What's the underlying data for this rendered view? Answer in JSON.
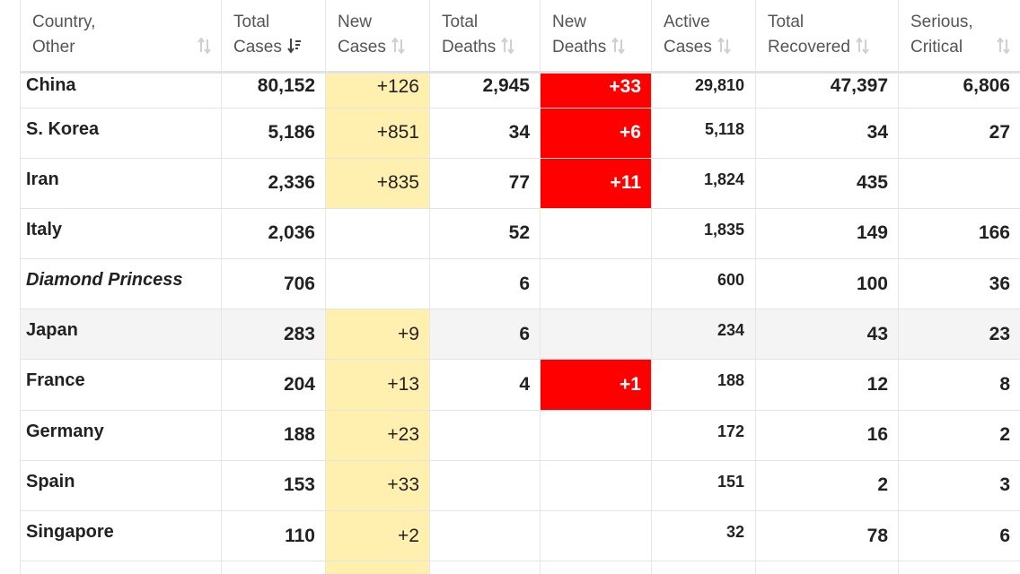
{
  "headers": [
    {
      "line1": "Country,",
      "line2": "Other",
      "sort_icon": "sort-both-icon"
    },
    {
      "line1": "Total",
      "line2": "Cases",
      "sort_icon": "sort-desc-icon"
    },
    {
      "line1": "New",
      "line2": "Cases",
      "sort_icon": "sort-both-icon"
    },
    {
      "line1": "Total",
      "line2": "Deaths",
      "sort_icon": "sort-both-icon"
    },
    {
      "line1": "New",
      "line2": "Deaths",
      "sort_icon": "sort-both-icon"
    },
    {
      "line1": "Active",
      "line2": "Cases",
      "sort_icon": "sort-both-icon"
    },
    {
      "line1": "Total",
      "line2": "Recovered",
      "sort_icon": "sort-both-icon"
    },
    {
      "line1": "Serious,",
      "line2": "Critical",
      "sort_icon": "sort-both-icon"
    }
  ],
  "rows": [
    {
      "country": "China",
      "total_cases": "80,152",
      "new_cases": "+126",
      "total_deaths": "2,945",
      "new_deaths": "+33",
      "active_cases": "29,810",
      "total_recovered": "47,397",
      "serious_critical": "6,806"
    },
    {
      "country": "S. Korea",
      "total_cases": "5,186",
      "new_cases": "+851",
      "total_deaths": "34",
      "new_deaths": "+6",
      "active_cases": "5,118",
      "total_recovered": "34",
      "serious_critical": "27"
    },
    {
      "country": "Iran",
      "total_cases": "2,336",
      "new_cases": "+835",
      "total_deaths": "77",
      "new_deaths": "+11",
      "active_cases": "1,824",
      "total_recovered": "435",
      "serious_critical": ""
    },
    {
      "country": "Italy",
      "total_cases": "2,036",
      "new_cases": "",
      "total_deaths": "52",
      "new_deaths": "",
      "active_cases": "1,835",
      "total_recovered": "149",
      "serious_critical": "166"
    },
    {
      "country": "Diamond Princess",
      "total_cases": "706",
      "new_cases": "",
      "total_deaths": "6",
      "new_deaths": "",
      "active_cases": "600",
      "total_recovered": "100",
      "serious_critical": "36"
    },
    {
      "country": "Japan",
      "total_cases": "283",
      "new_cases": "+9",
      "total_deaths": "6",
      "new_deaths": "",
      "active_cases": "234",
      "total_recovered": "43",
      "serious_critical": "23"
    },
    {
      "country": "France",
      "total_cases": "204",
      "new_cases": "+13",
      "total_deaths": "4",
      "new_deaths": "+1",
      "active_cases": "188",
      "total_recovered": "12",
      "serious_critical": "8"
    },
    {
      "country": "Germany",
      "total_cases": "188",
      "new_cases": "+23",
      "total_deaths": "",
      "new_deaths": "",
      "active_cases": "172",
      "total_recovered": "16",
      "serious_critical": "2"
    },
    {
      "country": "Spain",
      "total_cases": "153",
      "new_cases": "+33",
      "total_deaths": "",
      "new_deaths": "",
      "active_cases": "151",
      "total_recovered": "2",
      "serious_critical": "3"
    },
    {
      "country": "Singapore",
      "total_cases": "110",
      "new_cases": "+2",
      "total_deaths": "",
      "new_deaths": "",
      "active_cases": "32",
      "total_recovered": "78",
      "serious_critical": "6"
    }
  ],
  "colors": {
    "new_cases_bg": "#fff0b0",
    "new_deaths_bg": "#ff0000",
    "ship_link": "#1a9fd8",
    "hover_row_bg": "#f4f4f4"
  }
}
